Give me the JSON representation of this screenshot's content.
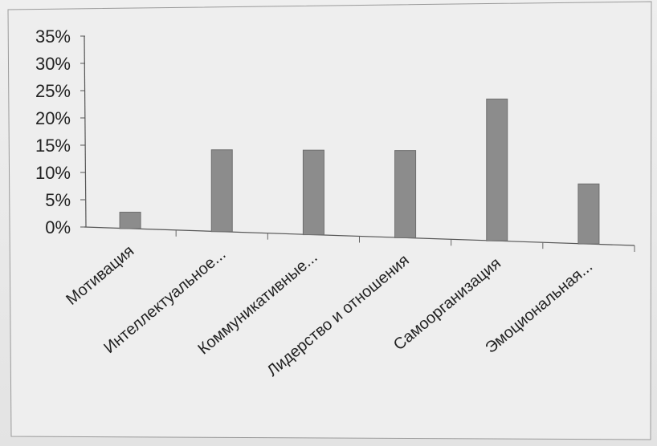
{
  "chart_data": {
    "type": "bar",
    "title": "",
    "xlabel": "",
    "ylabel": "",
    "categories": [
      "Мотивация",
      "Интеллектуальное...",
      "Коммуникативные...",
      "Лидерство и отношения",
      "Самоорганизация",
      "Эмоциональная..."
    ],
    "values": [
      3,
      15,
      15.5,
      16,
      26,
      11
    ],
    "ylim": [
      0,
      35
    ],
    "yticks": [
      "0%",
      "5%",
      "10%",
      "15%",
      "20%",
      "25%",
      "30%",
      "35%"
    ],
    "ytick_values": [
      0,
      5,
      10,
      15,
      20,
      25,
      30,
      35
    ],
    "grid": false,
    "legend": "none",
    "bar_color": "#8c8c8c"
  }
}
